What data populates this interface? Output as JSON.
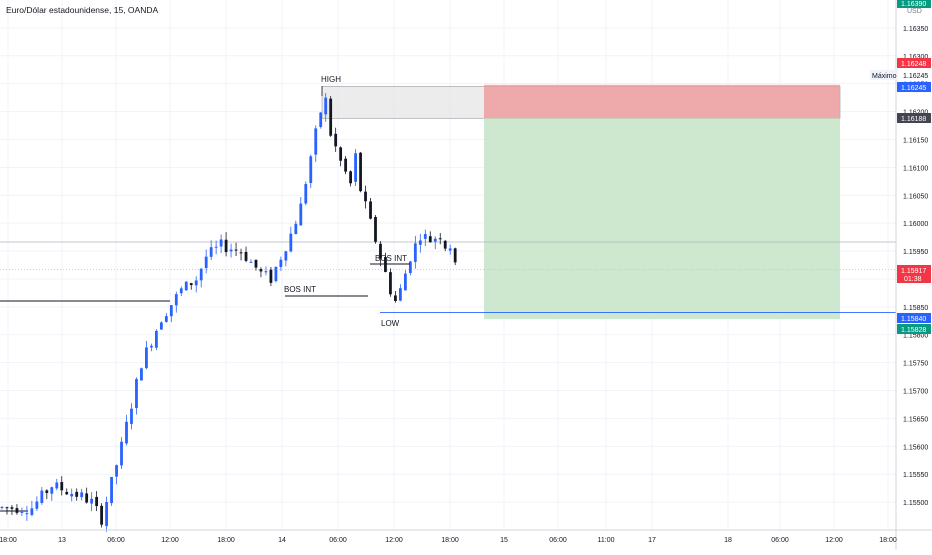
{
  "header": {
    "title": "Euro/Dólar estadounidense, 15, OANDA"
  },
  "axis": {
    "currency": "USD"
  },
  "colors": {
    "grid": "#f0f3fa",
    "border": "#d1d4dc",
    "text": "#131722",
    "up": "#2962ff",
    "down": "#131722",
    "target_zone": "#c8e6c9",
    "stop_zone": "#ef9a9a",
    "supply_zone": "#e6e6e6",
    "price_label_red": "#f23645",
    "price_label_green": "#089981",
    "price_label_blue": "#2962ff",
    "price_label_dark": "#434651"
  },
  "chart_data": {
    "type": "candlestick",
    "symbol": "EURUSD",
    "timeframe": "15",
    "ylim": [
      1.1545,
      1.164
    ],
    "y_ticks": [
      "1.16350",
      "1.16300",
      "1.16250",
      "1.16200",
      "1.16150",
      "1.16100",
      "1.16050",
      "1.16000",
      "1.15950",
      "1.15900",
      "1.15850",
      "1.15800",
      "1.15750",
      "1.15700",
      "1.15650",
      "1.15600",
      "1.15550",
      "1.15500"
    ],
    "x_ticks": [
      "18:00",
      "13",
      "06:00",
      "12:00",
      "18:00",
      "14",
      "06:00",
      "12:00",
      "18:00",
      "15",
      "06:00",
      "11:00",
      "17",
      "18",
      "06:00",
      "12:00",
      "18:00"
    ],
    "price_path": [
      [
        0,
        1.1549
      ],
      [
        6,
        1.1549
      ],
      [
        10,
        1.1553
      ],
      [
        13,
        1.1552
      ],
      [
        16,
        1.1551
      ],
      [
        18,
        1.155
      ],
      [
        20,
        1.1547
      ],
      [
        24,
        1.156
      ],
      [
        28,
        1.1575
      ],
      [
        32,
        1.1583
      ],
      [
        36,
        1.1588
      ],
      [
        39,
        1.159
      ],
      [
        41,
        1.1594
      ],
      [
        44,
        1.1596
      ],
      [
        48,
        1.1595
      ],
      [
        50,
        1.1593
      ],
      [
        52,
        1.1591
      ],
      [
        54,
        1.159
      ],
      [
        56,
        1.1594
      ],
      [
        58,
        1.1598
      ],
      [
        60,
        1.1603
      ],
      [
        62,
        1.1612
      ],
      [
        64,
        1.162
      ],
      [
        65,
        1.1622
      ],
      [
        66,
        1.1616
      ],
      [
        68,
        1.1611
      ],
      [
        70,
        1.1607
      ],
      [
        71,
        1.1612
      ],
      [
        72,
        1.1606
      ],
      [
        74,
        1.16
      ],
      [
        76,
        1.1594
      ],
      [
        78,
        1.1588
      ],
      [
        79,
        1.1586
      ],
      [
        80,
        1.1588
      ],
      [
        82,
        1.1594
      ],
      [
        84,
        1.1598
      ],
      [
        86,
        1.1597
      ],
      [
        88,
        1.1598
      ],
      [
        89,
        1.1596
      ],
      [
        90,
        1.1596
      ],
      [
        91,
        1.1592
      ]
    ],
    "levels": [
      {
        "label": "HIGH",
        "price": 1.1623
      },
      {
        "label": "LOW",
        "price": 1.1585
      },
      {
        "label": "BOS INT",
        "price": 1.1591
      },
      {
        "label": "BOS INT",
        "price": 1.1595
      }
    ],
    "zones": {
      "supply": [
        1.16188,
        1.16245
      ],
      "stop": [
        1.16188,
        1.16248
      ],
      "target": [
        1.15828,
        1.16188
      ]
    },
    "price_labels": [
      {
        "value": "1.16390",
        "kind": "green"
      },
      {
        "value": "1.16248",
        "kind": "red"
      },
      {
        "value": "1.16245",
        "kind": "blue"
      },
      {
        "value": "1.16188",
        "kind": "dark"
      },
      {
        "value": "1.15917",
        "kind": "red",
        "sub": "01:38"
      },
      {
        "value": "1.15840",
        "kind": "blue"
      },
      {
        "value": "1.15828",
        "kind": "green"
      }
    ],
    "annotations": [
      {
        "text": "Máximo",
        "value": "1.16245"
      }
    ]
  }
}
